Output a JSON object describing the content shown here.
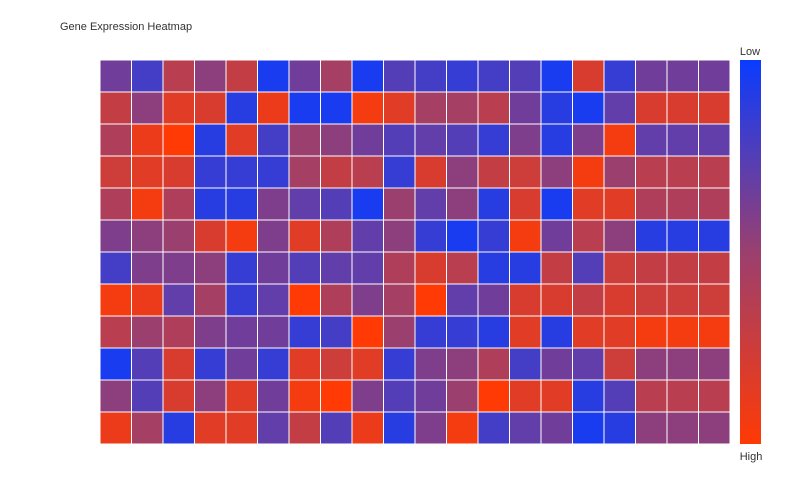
{
  "chart_data": {
    "type": "heatmap",
    "title": "Gene Expression Heatmap",
    "xlabel": "",
    "ylabel": "",
    "rows": 12,
    "cols": 20,
    "value_range": [
      0,
      1
    ],
    "colorscale": {
      "low_label": "Low",
      "high_label": "High",
      "low_color": "#0a3cff",
      "mid_color": "#9b3f6f",
      "high_color": "#ff3a05"
    },
    "grid_color": "#ffffff",
    "values": [
      [
        0.35,
        0.2,
        0.65,
        0.45,
        0.7,
        0.05,
        0.35,
        0.55,
        0.05,
        0.25,
        0.2,
        0.15,
        0.2,
        0.25,
        0.05,
        0.8,
        0.15,
        0.35,
        0.35,
        0.35
      ],
      [
        0.7,
        0.45,
        0.85,
        0.8,
        0.1,
        0.9,
        0.05,
        0.05,
        0.95,
        0.85,
        0.55,
        0.55,
        0.65,
        0.35,
        0.1,
        0.05,
        0.3,
        0.8,
        0.8,
        0.8
      ],
      [
        0.6,
        0.9,
        1.0,
        0.1,
        0.85,
        0.2,
        0.5,
        0.45,
        0.35,
        0.25,
        0.3,
        0.25,
        0.15,
        0.4,
        0.1,
        0.4,
        0.95,
        0.3,
        0.3,
        0.3
      ],
      [
        0.75,
        0.85,
        0.8,
        0.15,
        0.15,
        0.15,
        0.55,
        0.7,
        0.65,
        0.15,
        0.8,
        0.45,
        0.7,
        0.75,
        0.45,
        0.95,
        0.5,
        0.65,
        0.65,
        0.65
      ],
      [
        0.6,
        0.95,
        0.6,
        0.1,
        0.1,
        0.4,
        0.3,
        0.25,
        0.05,
        0.5,
        0.3,
        0.45,
        0.1,
        0.8,
        0.05,
        0.85,
        0.85,
        0.6,
        0.6,
        0.6
      ],
      [
        0.4,
        0.45,
        0.5,
        0.8,
        0.95,
        0.4,
        0.85,
        0.6,
        0.3,
        0.45,
        0.15,
        0.05,
        0.15,
        0.95,
        0.35,
        0.65,
        0.45,
        0.1,
        0.1,
        0.1
      ],
      [
        0.2,
        0.4,
        0.4,
        0.45,
        0.15,
        0.35,
        0.25,
        0.3,
        0.3,
        0.6,
        0.8,
        0.65,
        0.1,
        0.1,
        0.7,
        0.25,
        0.75,
        0.7,
        0.7,
        0.7
      ],
      [
        0.95,
        0.9,
        0.3,
        0.55,
        0.15,
        0.3,
        1.0,
        0.6,
        0.4,
        0.55,
        1.0,
        0.3,
        0.35,
        0.8,
        0.8,
        0.7,
        0.8,
        0.75,
        0.75,
        0.75
      ],
      [
        0.65,
        0.5,
        0.6,
        0.4,
        0.35,
        0.35,
        0.15,
        0.2,
        1.0,
        0.5,
        0.15,
        0.15,
        0.1,
        0.85,
        0.1,
        0.85,
        0.85,
        0.95,
        0.95,
        0.95
      ],
      [
        0.05,
        0.25,
        0.8,
        0.15,
        0.35,
        0.15,
        0.85,
        0.75,
        0.85,
        0.15,
        0.4,
        0.45,
        0.6,
        0.2,
        0.35,
        0.3,
        0.75,
        0.45,
        0.45,
        0.45
      ],
      [
        0.45,
        0.25,
        0.8,
        0.45,
        0.85,
        0.35,
        0.95,
        1.0,
        0.4,
        0.25,
        0.35,
        0.5,
        1.0,
        0.85,
        0.85,
        0.1,
        0.25,
        0.65,
        0.65,
        0.65
      ],
      [
        0.9,
        0.55,
        0.1,
        0.85,
        0.85,
        0.3,
        0.7,
        0.25,
        0.9,
        0.1,
        0.4,
        0.95,
        0.2,
        0.3,
        0.35,
        0.05,
        0.1,
        0.45,
        0.45,
        0.45
      ]
    ]
  }
}
